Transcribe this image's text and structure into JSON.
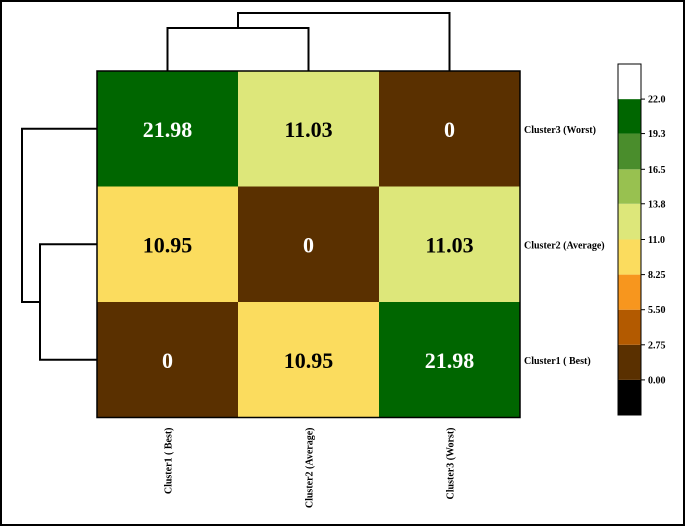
{
  "chart_data": {
    "type": "heatmap",
    "title": "",
    "rows": [
      "Cluster3 (Worst)",
      "Cluster2 (Average)",
      "Cluster1 ( Best)"
    ],
    "columns": [
      "Cluster1 ( Best)",
      "Cluster2 (Average)",
      "Cluster3 (Worst)"
    ],
    "values": [
      [
        21.98,
        11.03,
        0
      ],
      [
        10.95,
        0,
        11.03
      ],
      [
        0,
        10.95,
        21.98
      ]
    ],
    "cell_labels": [
      [
        "21.98",
        "11.03",
        "0"
      ],
      [
        "10.95",
        "0",
        "11.03"
      ],
      [
        "0",
        "10.95",
        "21.98"
      ]
    ],
    "colorbar": {
      "ticks": [
        "22.0",
        "19.3",
        "16.5",
        "13.8",
        "11.0",
        "8.25",
        "5.50",
        "2.75",
        "0.00"
      ],
      "tick_values": [
        22.0,
        19.3,
        16.5,
        13.8,
        11.0,
        8.25,
        5.5,
        2.75,
        0.0
      ],
      "range": [
        -2.75,
        24.75
      ],
      "bands": [
        {
          "from": -2.75,
          "to": 0.0,
          "color": "#000000"
        },
        {
          "from": 0.0,
          "to": 2.75,
          "color": "#5a3000"
        },
        {
          "from": 2.75,
          "to": 5.5,
          "color": "#b35a00"
        },
        {
          "from": 5.5,
          "to": 8.25,
          "color": "#f7961e"
        },
        {
          "from": 8.25,
          "to": 11.0,
          "color": "#fbdc5e"
        },
        {
          "from": 11.0,
          "to": 13.8,
          "color": "#dde77a"
        },
        {
          "from": 13.8,
          "to": 16.5,
          "color": "#98c150"
        },
        {
          "from": 16.5,
          "to": 19.3,
          "color": "#4a8d2c"
        },
        {
          "from": 19.3,
          "to": 22.0,
          "color": "#006600"
        },
        {
          "from": 22.0,
          "to": 24.75,
          "color": "#ffffff"
        }
      ]
    },
    "legend_placement": "right",
    "grid": false
  }
}
